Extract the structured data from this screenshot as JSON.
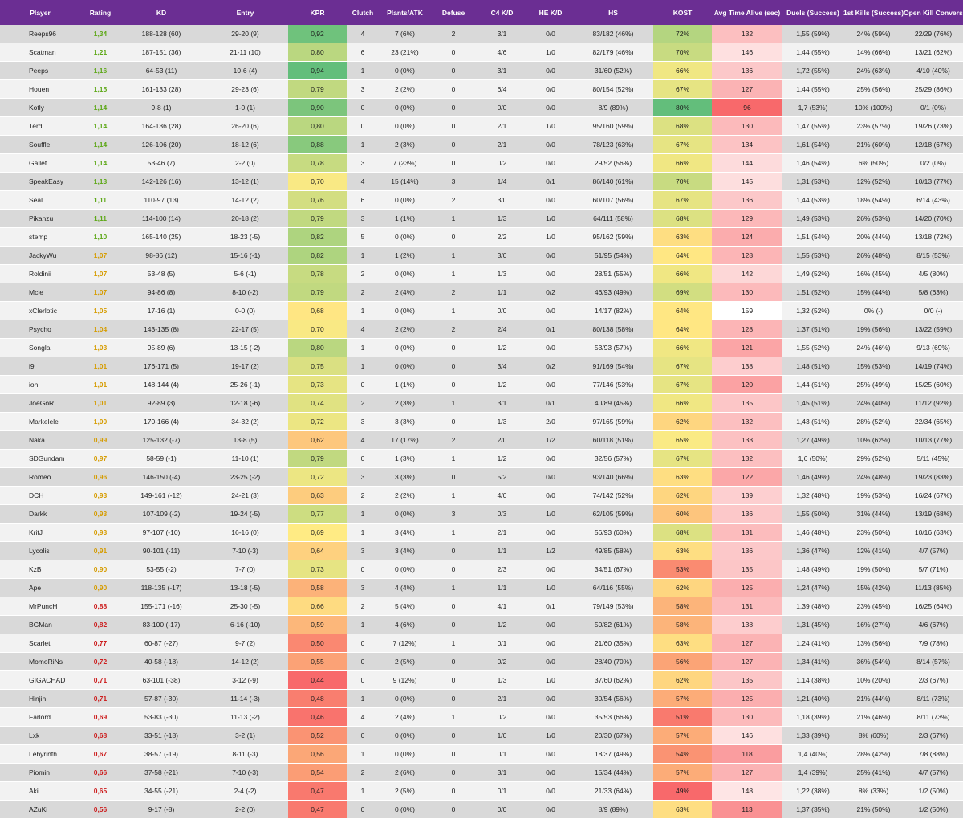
{
  "chart_data": {
    "type": "table",
    "colors": {
      "header_bg": "#6b2e93",
      "header_text": "#ffffff",
      "row_odd": "#d9d9d9",
      "row_even": "#f2f2f2",
      "rating_high": "#5ea818",
      "rating_mid": "#d69c00",
      "rating_low": "#cc1c1c",
      "scale_low": "#f8696b",
      "scale_mid": "#ffeb84",
      "scale_high": "#63be7b",
      "time_scale_low": "#f8696b",
      "time_scale_high": "#ffffff"
    },
    "columns": [
      "Player",
      "Rating",
      "KD",
      "Entry",
      "KPR",
      "Clutch",
      "Plants/ATK",
      "Defuse",
      "C4 K/D",
      "HE K/D",
      "HS",
      "KOST",
      "Avg Time Alive (sec)",
      "Duels (Success)",
      "1st Kills (Success)",
      "Open Kill Conversion"
    ],
    "rows": [
      [
        "Reeps96",
        "1,34",
        "188-128 (60)",
        "29-20 (9)",
        "0,92",
        "4",
        "7 (6%)",
        "2",
        "3/1",
        "0/0",
        "83/182 (46%)",
        "72%",
        "132",
        "1,55 (59%)",
        "24% (59%)",
        "22/29 (76%)"
      ],
      [
        "Scatman",
        "1,21",
        "187-151 (36)",
        "21-11 (10)",
        "0,80",
        "6",
        "23 (21%)",
        "0",
        "4/6",
        "1/0",
        "82/179 (46%)",
        "70%",
        "146",
        "1,44 (55%)",
        "14% (66%)",
        "13/21 (62%)"
      ],
      [
        "Peeps",
        "1,16",
        "64-53 (11)",
        "10-6 (4)",
        "0,94",
        "1",
        "0 (0%)",
        "0",
        "3/1",
        "0/0",
        "31/60 (52%)",
        "66%",
        "136",
        "1,72 (55%)",
        "24% (63%)",
        "4/10 (40%)"
      ],
      [
        "Houen",
        "1,15",
        "161-133 (28)",
        "29-23 (6)",
        "0,79",
        "3",
        "2 (2%)",
        "0",
        "6/4",
        "0/0",
        "80/154 (52%)",
        "67%",
        "127",
        "1,44 (55%)",
        "25% (56%)",
        "25/29 (86%)"
      ],
      [
        "Kotly",
        "1,14",
        "9-8 (1)",
        "1-0 (1)",
        "0,90",
        "0",
        "0 (0%)",
        "0",
        "0/0",
        "0/0",
        "8/9 (89%)",
        "80%",
        "96",
        "1,7 (53%)",
        "10% (100%)",
        "0/1 (0%)"
      ],
      [
        "Terd",
        "1,14",
        "164-136 (28)",
        "26-20 (6)",
        "0,80",
        "0",
        "0 (0%)",
        "0",
        "2/1",
        "1/0",
        "95/160 (59%)",
        "68%",
        "130",
        "1,47 (55%)",
        "23% (57%)",
        "19/26 (73%)"
      ],
      [
        "Souffle",
        "1,14",
        "126-106 (20)",
        "18-12 (6)",
        "0,88",
        "1",
        "2 (3%)",
        "0",
        "2/1",
        "0/0",
        "78/123 (63%)",
        "67%",
        "134",
        "1,61 (54%)",
        "21% (60%)",
        "12/18 (67%)"
      ],
      [
        "Gallet",
        "1,14",
        "53-46 (7)",
        "2-2 (0)",
        "0,78",
        "3",
        "7 (23%)",
        "0",
        "0/2",
        "0/0",
        "29/52 (56%)",
        "66%",
        "144",
        "1,46 (54%)",
        "6% (50%)",
        "0/2 (0%)"
      ],
      [
        "SpeakEasy",
        "1,13",
        "142-126 (16)",
        "13-12 (1)",
        "0,70",
        "4",
        "15 (14%)",
        "3",
        "1/4",
        "0/1",
        "86/140 (61%)",
        "70%",
        "145",
        "1,31 (53%)",
        "12% (52%)",
        "10/13 (77%)"
      ],
      [
        "Seal",
        "1,11",
        "110-97 (13)",
        "14-12 (2)",
        "0,76",
        "6",
        "0 (0%)",
        "2",
        "3/0",
        "0/0",
        "60/107 (56%)",
        "67%",
        "136",
        "1,44 (53%)",
        "18% (54%)",
        "6/14 (43%)"
      ],
      [
        "Pikanzu",
        "1,11",
        "114-100 (14)",
        "20-18 (2)",
        "0,79",
        "3",
        "1 (1%)",
        "1",
        "1/3",
        "1/0",
        "64/111 (58%)",
        "68%",
        "129",
        "1,49 (53%)",
        "26% (53%)",
        "14/20 (70%)"
      ],
      [
        "stemp",
        "1,10",
        "165-140 (25)",
        "18-23 (-5)",
        "0,82",
        "5",
        "0 (0%)",
        "0",
        "2/2",
        "1/0",
        "95/162 (59%)",
        "63%",
        "124",
        "1,51 (54%)",
        "20% (44%)",
        "13/18 (72%)"
      ],
      [
        "JackyWu",
        "1,07",
        "98-86 (12)",
        "15-16 (-1)",
        "0,82",
        "1",
        "1 (2%)",
        "1",
        "3/0",
        "0/0",
        "51/95 (54%)",
        "64%",
        "128",
        "1,55 (53%)",
        "26% (48%)",
        "8/15 (53%)"
      ],
      [
        "Roldinii",
        "1,07",
        "53-48 (5)",
        "5-6 (-1)",
        "0,78",
        "2",
        "0 (0%)",
        "1",
        "1/3",
        "0/0",
        "28/51 (55%)",
        "66%",
        "142",
        "1,49 (52%)",
        "16% (45%)",
        "4/5 (80%)"
      ],
      [
        "Mcie",
        "1,07",
        "94-86 (8)",
        "8-10 (-2)",
        "0,79",
        "2",
        "2 (4%)",
        "2",
        "1/1",
        "0/2",
        "46/93 (49%)",
        "69%",
        "130",
        "1,51 (52%)",
        "15% (44%)",
        "5/8 (63%)"
      ],
      [
        "xClerlotic",
        "1,05",
        "17-16 (1)",
        "0-0 (0)",
        "0,68",
        "1",
        "0 (0%)",
        "1",
        "0/0",
        "0/0",
        "14/17 (82%)",
        "64%",
        "159",
        "1,32 (52%)",
        "0% (-)",
        "0/0 (-)"
      ],
      [
        "Psycho",
        "1,04",
        "143-135 (8)",
        "22-17 (5)",
        "0,70",
        "4",
        "2 (2%)",
        "2",
        "2/4",
        "0/1",
        "80/138 (58%)",
        "64%",
        "128",
        "1,37 (51%)",
        "19% (56%)",
        "13/22 (59%)"
      ],
      [
        "Songla",
        "1,03",
        "95-89 (6)",
        "13-15 (-2)",
        "0,80",
        "1",
        "0 (0%)",
        "0",
        "1/2",
        "0/0",
        "53/93 (57%)",
        "66%",
        "121",
        "1,55 (52%)",
        "24% (46%)",
        "9/13 (69%)"
      ],
      [
        "i9",
        "1,01",
        "176-171 (5)",
        "19-17 (2)",
        "0,75",
        "1",
        "0 (0%)",
        "0",
        "3/4",
        "0/2",
        "91/169 (54%)",
        "67%",
        "138",
        "1,48 (51%)",
        "15% (53%)",
        "14/19 (74%)"
      ],
      [
        "ion",
        "1,01",
        "148-144 (4)",
        "25-26 (-1)",
        "0,73",
        "0",
        "1 (1%)",
        "0",
        "1/2",
        "0/0",
        "77/146 (53%)",
        "67%",
        "120",
        "1,44 (51%)",
        "25% (49%)",
        "15/25 (60%)"
      ],
      [
        "JoeGoR",
        "1,01",
        "92-89 (3)",
        "12-18 (-6)",
        "0,74",
        "2",
        "2 (3%)",
        "1",
        "3/1",
        "0/1",
        "40/89 (45%)",
        "66%",
        "135",
        "1,45 (51%)",
        "24% (40%)",
        "11/12 (92%)"
      ],
      [
        "Markelele",
        "1,00",
        "170-166 (4)",
        "34-32 (2)",
        "0,72",
        "3",
        "3 (3%)",
        "0",
        "1/3",
        "2/0",
        "97/165 (59%)",
        "62%",
        "132",
        "1,43 (51%)",
        "28% (52%)",
        "22/34 (65%)"
      ],
      [
        "Naka",
        "0,99",
        "125-132 (-7)",
        "13-8 (5)",
        "0,62",
        "4",
        "17 (17%)",
        "2",
        "2/0",
        "1/2",
        "60/118 (51%)",
        "65%",
        "133",
        "1,27 (49%)",
        "10% (62%)",
        "10/13 (77%)"
      ],
      [
        "SDGundam",
        "0,97",
        "58-59 (-1)",
        "11-10 (1)",
        "0,79",
        "0",
        "1 (3%)",
        "1",
        "1/2",
        "0/0",
        "32/56 (57%)",
        "67%",
        "132",
        "1,6 (50%)",
        "29% (52%)",
        "5/11 (45%)"
      ],
      [
        "Romeo",
        "0,96",
        "146-150 (-4)",
        "23-25 (-2)",
        "0,72",
        "3",
        "3 (3%)",
        "0",
        "5/2",
        "0/0",
        "93/140 (66%)",
        "63%",
        "122",
        "1,46 (49%)",
        "24% (48%)",
        "19/23 (83%)"
      ],
      [
        "DCH",
        "0,93",
        "149-161 (-12)",
        "24-21 (3)",
        "0,63",
        "2",
        "2 (2%)",
        "1",
        "4/0",
        "0/0",
        "74/142 (52%)",
        "62%",
        "139",
        "1,32 (48%)",
        "19% (53%)",
        "16/24 (67%)"
      ],
      [
        "Darkk",
        "0,93",
        "107-109 (-2)",
        "19-24 (-5)",
        "0,77",
        "1",
        "0 (0%)",
        "3",
        "0/3",
        "1/0",
        "62/105 (59%)",
        "60%",
        "136",
        "1,55 (50%)",
        "31% (44%)",
        "13/19 (68%)"
      ],
      [
        "KritJ",
        "0,93",
        "97-107 (-10)",
        "16-16 (0)",
        "0,69",
        "1",
        "3 (4%)",
        "1",
        "2/1",
        "0/0",
        "56/93 (60%)",
        "68%",
        "131",
        "1,46 (48%)",
        "23% (50%)",
        "10/16 (63%)"
      ],
      [
        "Lycolis",
        "0,91",
        "90-101 (-11)",
        "7-10 (-3)",
        "0,64",
        "3",
        "3 (4%)",
        "0",
        "1/1",
        "1/2",
        "49/85 (58%)",
        "63%",
        "136",
        "1,36 (47%)",
        "12% (41%)",
        "4/7 (57%)"
      ],
      [
        "KzB",
        "0,90",
        "53-55 (-2)",
        "7-7 (0)",
        "0,73",
        "0",
        "0 (0%)",
        "0",
        "2/3",
        "0/0",
        "34/51 (67%)",
        "53%",
        "135",
        "1,48 (49%)",
        "19% (50%)",
        "5/7 (71%)"
      ],
      [
        "Ape",
        "0,90",
        "118-135 (-17)",
        "13-18 (-5)",
        "0,58",
        "3",
        "4 (4%)",
        "1",
        "1/1",
        "1/0",
        "64/116 (55%)",
        "62%",
        "125",
        "1,24 (47%)",
        "15% (42%)",
        "11/13 (85%)"
      ],
      [
        "MrPuncH",
        "0,88",
        "155-171 (-16)",
        "25-30 (-5)",
        "0,66",
        "2",
        "5 (4%)",
        "0",
        "4/1",
        "0/1",
        "79/149 (53%)",
        "58%",
        "131",
        "1,39 (48%)",
        "23% (45%)",
        "16/25 (64%)"
      ],
      [
        "BGMan",
        "0,82",
        "83-100 (-17)",
        "6-16 (-10)",
        "0,59",
        "1",
        "4 (6%)",
        "0",
        "1/2",
        "0/0",
        "50/82 (61%)",
        "58%",
        "138",
        "1,31 (45%)",
        "16% (27%)",
        "4/6 (67%)"
      ],
      [
        "Scarlet",
        "0,77",
        "60-87 (-27)",
        "9-7 (2)",
        "0,50",
        "0",
        "7 (12%)",
        "1",
        "0/1",
        "0/0",
        "21/60 (35%)",
        "63%",
        "127",
        "1,24 (41%)",
        "13% (56%)",
        "7/9 (78%)"
      ],
      [
        "MomoRiNs",
        "0,72",
        "40-58 (-18)",
        "14-12 (2)",
        "0,55",
        "0",
        "2 (5%)",
        "0",
        "0/2",
        "0/0",
        "28/40 (70%)",
        "56%",
        "127",
        "1,34 (41%)",
        "36% (54%)",
        "8/14 (57%)"
      ],
      [
        "GIGACHAD",
        "0,71",
        "63-101 (-38)",
        "3-12 (-9)",
        "0,44",
        "0",
        "9 (12%)",
        "0",
        "1/3",
        "1/0",
        "37/60 (62%)",
        "62%",
        "135",
        "1,14 (38%)",
        "10% (20%)",
        "2/3 (67%)"
      ],
      [
        "Hinjin",
        "0,71",
        "57-87 (-30)",
        "11-14 (-3)",
        "0,48",
        "1",
        "0 (0%)",
        "0",
        "2/1",
        "0/0",
        "30/54 (56%)",
        "57%",
        "125",
        "1,21 (40%)",
        "21% (44%)",
        "8/11 (73%)"
      ],
      [
        "Farlord",
        "0,69",
        "53-83 (-30)",
        "11-13 (-2)",
        "0,46",
        "4",
        "2 (4%)",
        "1",
        "0/2",
        "0/0",
        "35/53 (66%)",
        "51%",
        "130",
        "1,18 (39%)",
        "21% (46%)",
        "8/11 (73%)"
      ],
      [
        "Lxk",
        "0,68",
        "33-51 (-18)",
        "3-2 (1)",
        "0,52",
        "0",
        "0 (0%)",
        "0",
        "1/0",
        "1/0",
        "20/30 (67%)",
        "57%",
        "146",
        "1,33 (39%)",
        "8% (60%)",
        "2/3 (67%)"
      ],
      [
        "Lebyrinth",
        "0,67",
        "38-57 (-19)",
        "8-11 (-3)",
        "0,56",
        "1",
        "0 (0%)",
        "0",
        "0/1",
        "0/0",
        "18/37 (49%)",
        "54%",
        "118",
        "1,4 (40%)",
        "28% (42%)",
        "7/8 (88%)"
      ],
      [
        "Piomin",
        "0,66",
        "37-58 (-21)",
        "7-10 (-3)",
        "0,54",
        "2",
        "2 (6%)",
        "0",
        "3/1",
        "0/0",
        "15/34 (44%)",
        "57%",
        "127",
        "1,4 (39%)",
        "25% (41%)",
        "4/7 (57%)"
      ],
      [
        "Aki",
        "0,65",
        "34-55 (-21)",
        "2-4 (-2)",
        "0,47",
        "1",
        "2 (5%)",
        "0",
        "0/1",
        "0/0",
        "21/33 (64%)",
        "49%",
        "148",
        "1,22 (38%)",
        "8% (33%)",
        "1/2 (50%)"
      ],
      [
        "AZuKi",
        "0,56",
        "9-17 (-8)",
        "2-2 (0)",
        "0,47",
        "0",
        "0 (0%)",
        "0",
        "0/0",
        "0/0",
        "8/9 (89%)",
        "63%",
        "113",
        "1,37 (35%)",
        "21% (50%)",
        "1/2 (50%)"
      ]
    ]
  }
}
